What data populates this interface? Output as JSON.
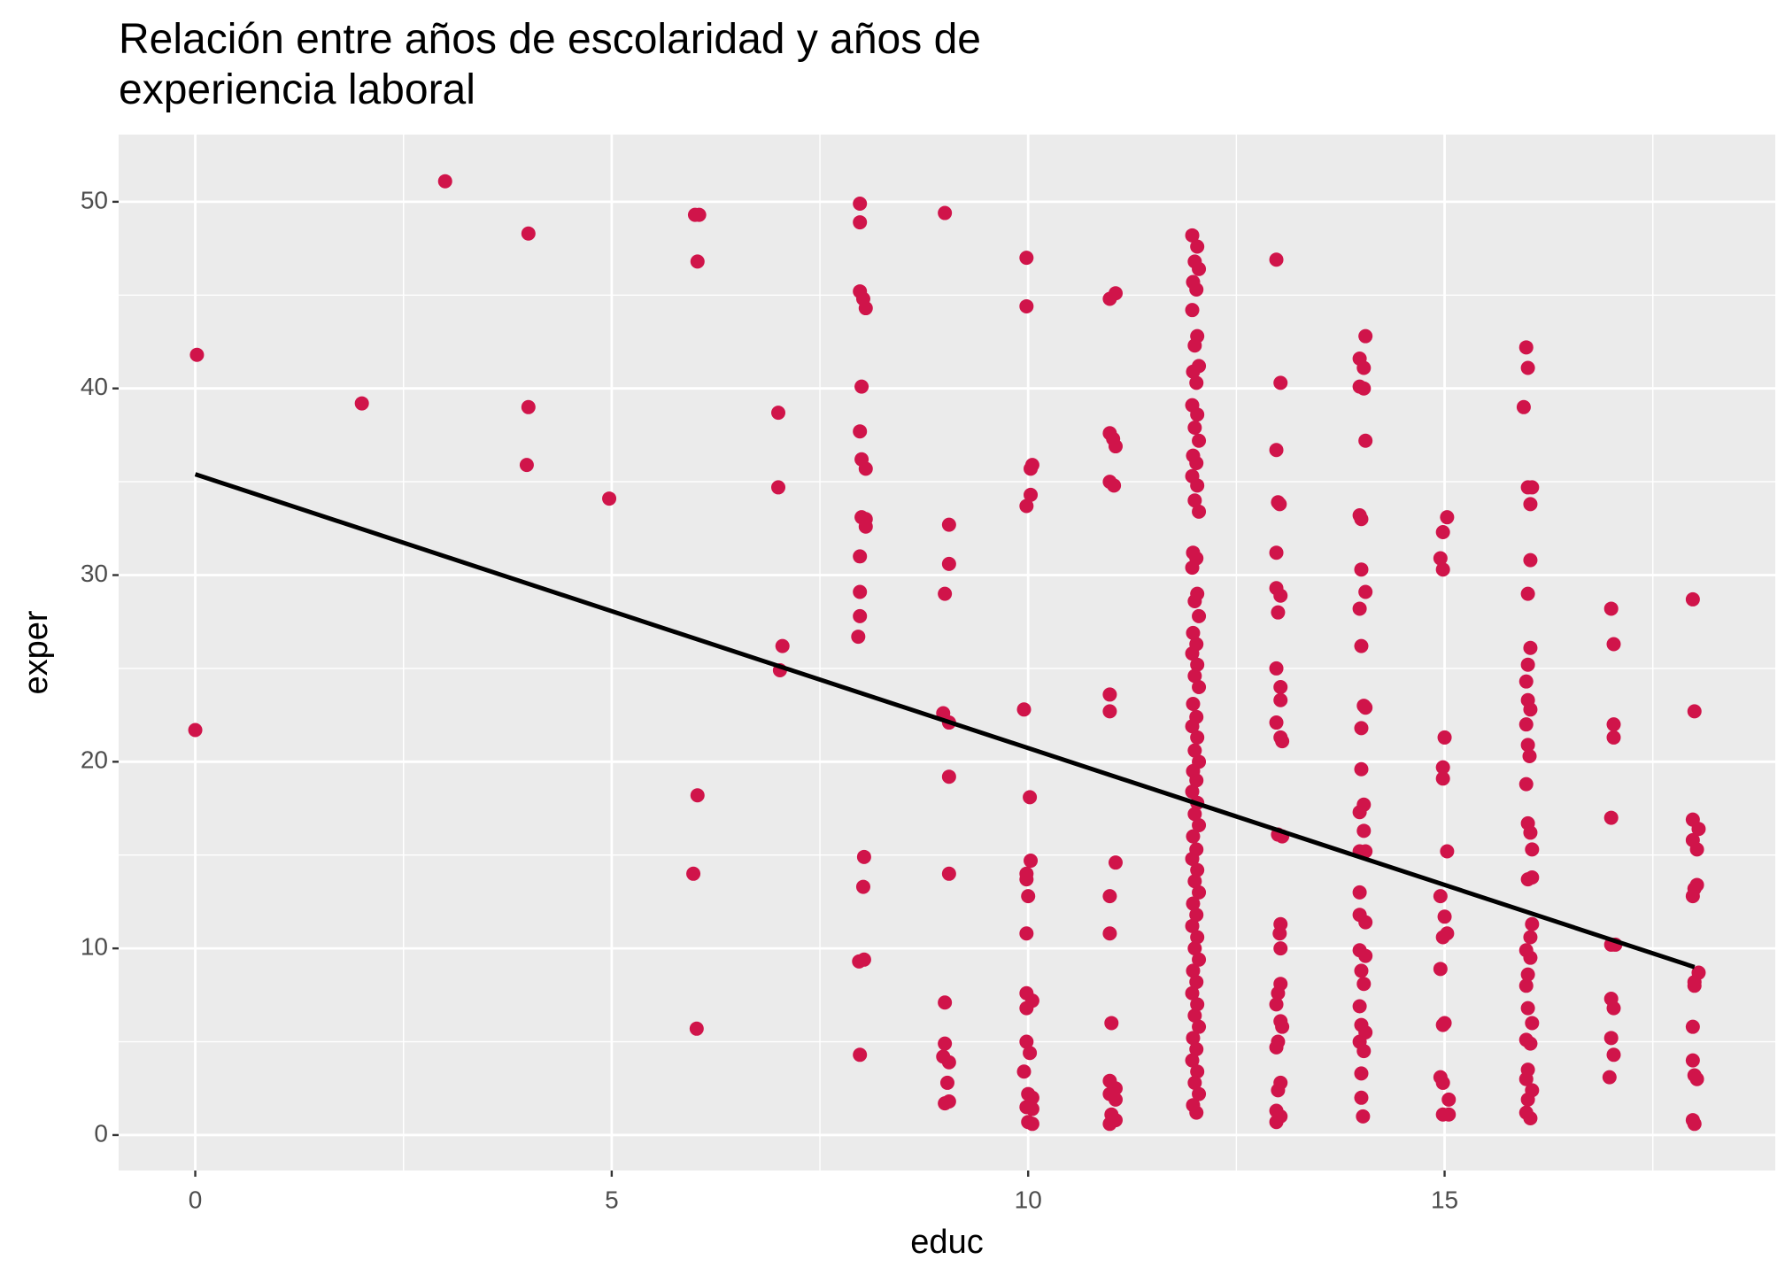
{
  "chart_data": {
    "type": "scatter",
    "title": [
      "Relación entre años de escolaridad y años de",
      "experiencia laboral"
    ],
    "xlabel": "educ",
    "ylabel": "exper",
    "color": "#d0144a",
    "xlim": [
      -0.92,
      18.97
    ],
    "ylim": [
      -1.9,
      53.6
    ],
    "xticks": [
      0,
      5,
      10,
      15
    ],
    "yticks": [
      0,
      10,
      20,
      30,
      40,
      50
    ],
    "xminor": [
      2.5,
      7.5,
      12.5,
      17.5
    ],
    "yminor": [
      5,
      15,
      25,
      35,
      45
    ],
    "grid": true,
    "x": [
      0.02,
      0,
      2.0,
      3.0,
      4.0,
      4.0,
      3.98,
      4.97,
      6.0,
      6.05,
      6.03,
      6.03,
      5.98,
      6.02,
      7.0,
      7.0,
      7.05,
      7.02,
      7.98,
      7.98,
      7.98,
      8.02,
      8.05,
      8.0,
      7.98,
      8.0,
      8.05,
      8.0,
      8.05,
      8.05,
      7.98,
      7.98,
      7.98,
      7.96,
      8.03,
      8.02,
      7.97,
      8.03,
      7.98,
      9.0,
      9.05,
      9.05,
      9.0,
      8.98,
      9.05,
      9.05,
      9.05,
      9.0,
      9.0,
      8.98,
      9.05,
      9.03,
      9.05,
      9.0,
      9.98,
      9.98,
      10.05,
      10.03,
      10.03,
      9.98,
      9.95,
      10.02,
      10.03,
      9.98,
      9.98,
      10.0,
      9.98,
      9.98,
      10.05,
      9.98,
      9.98,
      10.02,
      9.95,
      10.0,
      10.05,
      9.98,
      10.05,
      10.0,
      10.05,
      11.05,
      10.98,
      10.98,
      11.02,
      11.05,
      10.98,
      11.03,
      10.98,
      10.98,
      11.05,
      10.98,
      10.98,
      11.0,
      10.98,
      11.05,
      10.98,
      11.05,
      11.0,
      11.05,
      10.98,
      11.97,
      12.03,
      12.0,
      12.05,
      11.98,
      12.02,
      11.97,
      12.03,
      12.0,
      12.05,
      11.98,
      12.02,
      11.97,
      12.03,
      12.0,
      12.05,
      11.98,
      12.02,
      11.97,
      12.03,
      12.0,
      12.05,
      11.98,
      12.02,
      11.97,
      12.03,
      12.0,
      12.05,
      11.98,
      12.02,
      11.97,
      12.03,
      12.0,
      12.05,
      11.98,
      12.02,
      11.97,
      12.03,
      12.0,
      12.05,
      11.98,
      12.02,
      11.97,
      12.03,
      12.0,
      12.05,
      11.98,
      12.02,
      11.97,
      12.03,
      12.0,
      12.05,
      11.98,
      12.02,
      11.97,
      12.03,
      12.0,
      12.05,
      11.98,
      12.02,
      11.97,
      12.03,
      12.0,
      12.05,
      11.98,
      12.02,
      11.97,
      12.03,
      12.0,
      12.05,
      11.98,
      12.02,
      12.98,
      13.03,
      12.98,
      13.0,
      13.02,
      12.98,
      12.98,
      13.03,
      13.0,
      12.98,
      13.03,
      13.03,
      12.98,
      13.03,
      13.05,
      13.0,
      13.05,
      13.03,
      13.02,
      13.03,
      13.03,
      13.0,
      12.98,
      13.03,
      13.05,
      13.0,
      12.98,
      13.03,
      13.0,
      12.98,
      13.03,
      12.98,
      13.98,
      14.05,
      14.03,
      13.98,
      14.03,
      14.05,
      13.98,
      14.0,
      14.0,
      14.05,
      13.98,
      14.0,
      14.03,
      14.05,
      14.0,
      14.0,
      14.03,
      13.98,
      14.03,
      13.98,
      14.05,
      13.98,
      13.98,
      14.05,
      13.98,
      14.05,
      14.0,
      14.03,
      13.98,
      14.0,
      14.05,
      13.98,
      14.03,
      14.0,
      14.0,
      14.02,
      15.03,
      14.98,
      14.95,
      14.98,
      15.0,
      14.98,
      14.98,
      15.03,
      14.95,
      15.0,
      15.03,
      14.98,
      14.95,
      15.0,
      14.98,
      14.95,
      14.98,
      15.05,
      14.98,
      15.05,
      15.98,
      16.0,
      15.95,
      16.0,
      16.05,
      16.03,
      16.03,
      16.0,
      16.03,
      16.0,
      15.98,
      16.0,
      16.03,
      15.98,
      16.0,
      16.02,
      15.98,
      16.0,
      16.03,
      16.05,
      16.0,
      16.05,
      16.05,
      16.03,
      15.98,
      16.03,
      16.0,
      15.98,
      16.0,
      16.05,
      15.98,
      16.03,
      16.0,
      15.98,
      16.05,
      16.0,
      15.98,
      16.03,
      17.0,
      17.03,
      17.03,
      17.03,
      17.0,
      17.0,
      17.05,
      17.0,
      17.03,
      17.0,
      17.03,
      16.98,
      17.98,
      18.0,
      17.98,
      18.05,
      17.98,
      18.03,
      18.03,
      18.0,
      17.98,
      18.05,
      18.0,
      18.0,
      17.98,
      17.98,
      18.0,
      18.03,
      17.98,
      18.0
    ],
    "values": [
      41.8,
      21.7,
      39.2,
      51.1,
      48.3,
      39.0,
      35.9,
      34.1,
      49.3,
      49.3,
      46.8,
      18.2,
      14.0,
      5.7,
      38.7,
      34.7,
      26.2,
      24.9,
      49.9,
      48.9,
      45.2,
      44.8,
      44.3,
      40.1,
      37.7,
      36.2,
      35.7,
      33.1,
      33.0,
      32.6,
      31.0,
      29.1,
      27.8,
      26.7,
      14.9,
      13.3,
      9.3,
      9.4,
      4.3,
      49.4,
      32.7,
      30.6,
      29.0,
      22.6,
      22.1,
      19.2,
      14.0,
      7.1,
      4.9,
      4.2,
      3.9,
      2.8,
      1.8,
      1.7,
      47.0,
      44.4,
      35.9,
      35.7,
      34.3,
      33.7,
      22.8,
      18.1,
      14.7,
      14.0,
      13.7,
      12.8,
      10.8,
      7.6,
      7.2,
      6.8,
      5.0,
      4.4,
      3.4,
      2.2,
      2.0,
      1.5,
      1.4,
      0.7,
      0.6,
      45.1,
      44.8,
      37.6,
      37.3,
      36.9,
      35.0,
      34.8,
      23.6,
      22.7,
      14.6,
      12.8,
      10.8,
      6.0,
      2.9,
      2.5,
      2.2,
      1.9,
      1.1,
      0.8,
      0.6,
      48.2,
      47.6,
      46.8,
      46.4,
      45.7,
      45.3,
      44.2,
      42.8,
      42.3,
      41.2,
      40.9,
      40.3,
      39.1,
      38.6,
      37.9,
      37.2,
      36.4,
      36.0,
      35.3,
      34.8,
      34.0,
      33.4,
      31.2,
      30.9,
      30.4,
      29.0,
      28.6,
      27.8,
      26.9,
      26.3,
      25.8,
      25.2,
      24.6,
      24.0,
      23.1,
      22.4,
      21.9,
      21.3,
      20.6,
      20.0,
      19.5,
      19.0,
      18.4,
      17.8,
      17.2,
      16.6,
      16.0,
      15.3,
      14.8,
      14.2,
      13.6,
      13.0,
      12.4,
      11.8,
      11.2,
      10.6,
      10.0,
      9.4,
      8.8,
      8.2,
      7.6,
      7.0,
      6.4,
      5.8,
      5.2,
      4.6,
      4.0,
      3.4,
      2.8,
      2.2,
      1.6,
      1.2,
      46.9,
      40.3,
      36.7,
      33.9,
      33.8,
      31.2,
      29.3,
      28.9,
      28.0,
      25.0,
      24.0,
      23.3,
      22.1,
      21.3,
      21.1,
      16.1,
      16.0,
      11.3,
      10.8,
      10.0,
      8.1,
      7.6,
      7.0,
      6.1,
      5.8,
      5.0,
      4.7,
      2.8,
      2.4,
      1.3,
      1.0,
      0.7,
      41.6,
      42.8,
      41.1,
      40.1,
      40.0,
      37.2,
      33.2,
      33.0,
      30.3,
      29.1,
      28.2,
      26.2,
      23.0,
      22.9,
      21.8,
      19.6,
      17.7,
      17.3,
      16.3,
      15.2,
      15.2,
      13.0,
      11.8,
      11.4,
      9.9,
      9.6,
      8.8,
      8.1,
      6.9,
      5.9,
      5.5,
      5.0,
      4.5,
      3.3,
      2.0,
      1.0,
      33.1,
      32.3,
      30.9,
      30.3,
      21.3,
      19.7,
      19.1,
      15.2,
      12.8,
      11.7,
      10.8,
      10.6,
      8.9,
      6.0,
      5.9,
      3.1,
      2.8,
      1.9,
      1.1,
      1.1,
      42.2,
      41.1,
      39.0,
      34.7,
      34.7,
      33.8,
      30.8,
      29.0,
      26.1,
      25.2,
      24.3,
      23.3,
      22.8,
      22.0,
      20.9,
      20.3,
      18.8,
      16.7,
      16.2,
      15.3,
      13.7,
      13.8,
      11.3,
      10.6,
      9.9,
      9.5,
      8.6,
      8.0,
      6.8,
      6.0,
      5.1,
      4.9,
      3.5,
      3.0,
      2.4,
      1.9,
      1.2,
      0.9,
      28.2,
      26.3,
      22.0,
      21.3,
      17.0,
      10.2,
      10.2,
      7.3,
      6.8,
      5.2,
      4.3,
      3.1,
      28.7,
      22.7,
      16.9,
      16.4,
      15.8,
      15.3,
      13.4,
      13.2,
      12.8,
      8.7,
      8.2,
      8.0,
      5.8,
      4.0,
      3.2,
      3.0,
      0.8,
      0.6
    ],
    "fit": {
      "x": [
        0,
        18
      ],
      "values": [
        35.4,
        9.0
      ],
      "color": "#000000"
    }
  }
}
